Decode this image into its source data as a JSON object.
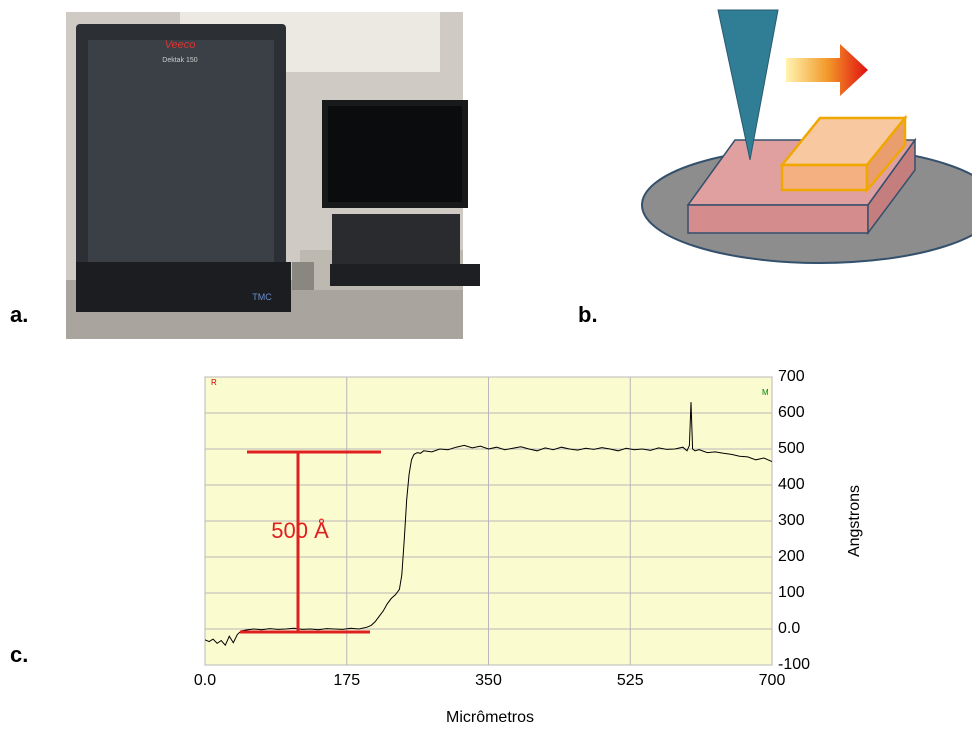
{
  "panels": {
    "a": {
      "label": "a.",
      "brand": "Veeco",
      "model": "Dektak 150",
      "base": "TMC"
    },
    "b": {
      "label": "b."
    },
    "c": {
      "label": "c."
    }
  },
  "chart_data": {
    "type": "line",
    "xlabel": "Micrômetros",
    "ylabel": "Angstrons",
    "annotation": "500 Å",
    "corner_left": "R",
    "corner_right": "M",
    "x": [
      0,
      5,
      10,
      15,
      20,
      25,
      30,
      35,
      40,
      45,
      50,
      60,
      70,
      80,
      90,
      100,
      110,
      120,
      130,
      140,
      150,
      160,
      170,
      180,
      190,
      200,
      205,
      210,
      215,
      220,
      225,
      230,
      235,
      240,
      243,
      246,
      249,
      252,
      255,
      258,
      262,
      266,
      270,
      280,
      290,
      300,
      310,
      320,
      330,
      340,
      350,
      360,
      370,
      380,
      390,
      400,
      410,
      420,
      430,
      440,
      450,
      460,
      470,
      480,
      490,
      500,
      510,
      520,
      530,
      540,
      550,
      560,
      570,
      580,
      590,
      595,
      598,
      600,
      602,
      605,
      610,
      620,
      630,
      640,
      650,
      660,
      670,
      680,
      690,
      700
    ],
    "series": [
      {
        "color": "#000000",
        "values": [
          -30,
          -35,
          -28,
          -40,
          -32,
          -45,
          -20,
          -38,
          -15,
          -5,
          -3,
          0,
          -2,
          1,
          -1,
          0,
          2,
          -1,
          0,
          -2,
          1,
          0,
          -1,
          2,
          0,
          5,
          10,
          20,
          35,
          50,
          70,
          85,
          95,
          110,
          150,
          250,
          360,
          430,
          470,
          485,
          490,
          488,
          495,
          492,
          500,
          498,
          505,
          510,
          503,
          508,
          500,
          505,
          498,
          502,
          506,
          500,
          495,
          503,
          498,
          505,
          500,
          497,
          502,
          499,
          504,
          500,
          495,
          502,
          498,
          500,
          496,
          503,
          499,
          500,
          505,
          495,
          510,
          630,
          500,
          495,
          498,
          490,
          492,
          488,
          485,
          480,
          478,
          470,
          475,
          465
        ]
      }
    ],
    "xlim": [
      0,
      700
    ],
    "ylim": [
      -100,
      700
    ],
    "xticks": [
      {
        "value": 0,
        "label": "0.0"
      },
      175,
      350,
      525,
      700
    ],
    "yticks": [
      -100,
      {
        "value": 0,
        "label": "0.0"
      },
      100,
      200,
      300,
      400,
      500,
      600,
      700
    ],
    "grid": true,
    "grid_color": "#b8b8b8",
    "plot_background": "#fbfbd0"
  }
}
